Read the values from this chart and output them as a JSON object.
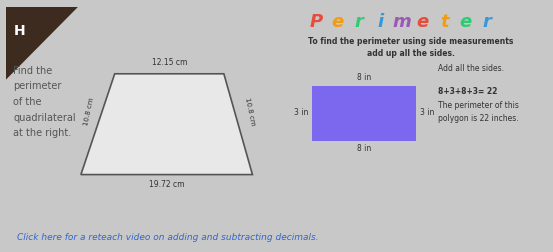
{
  "bg_color": "#c8c8c8",
  "left_panel": {
    "bg_color": "#f0f0f0",
    "border_color": "#888888",
    "header_bg": "#3d2b1f",
    "header_text": "H",
    "header_text_color": "#ffffff",
    "body_text": "Find the\nperimeter\nof the\nquadrilateral\nat the right.",
    "body_text_color": "#555555",
    "trap_label_top": "12.15 cm",
    "trap_label_bottom": "19.72 cm",
    "trap_label_left": "10.8 cm",
    "trap_label_right": "10.8 cm",
    "trap_color": "#e8e8e8",
    "trap_edge_color": "#555555"
  },
  "right_panel": {
    "bg_color": "#f0f0f0",
    "border_color": "#888888",
    "title": "Perimeter",
    "title_colors": [
      "#e74c3c",
      "#f39c12",
      "#2ecc71",
      "#3498db",
      "#9b59b6",
      "#e74c3c",
      "#f39c12",
      "#2ecc71",
      "#3498db"
    ],
    "subtitle": "To find the perimeter using side measurements\nadd up all the sides.",
    "subtitle_color": "#333333",
    "rect_color": "#7b68ee",
    "label_top": "8 in",
    "label_bottom": "8 in",
    "label_left": "3 in",
    "label_right": "3 in",
    "add_sides_text": "Add all the sides.",
    "equation_text": "8+3+8+3= 22",
    "perimeter_text": "The perimeter of this\npolygon is 22 inches.",
    "text_color": "#333333"
  },
  "footer_text": "Click here for a reteach video on adding and subtracting decimals.",
  "footer_color": "#3366cc"
}
